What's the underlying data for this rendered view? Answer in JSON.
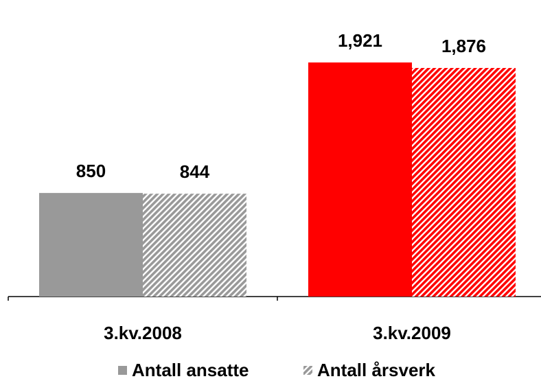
{
  "chart_data": {
    "type": "bar",
    "categories": [
      "3.kv.2008",
      "3.kv.2009"
    ],
    "series": [
      {
        "name": "Antall ansatte",
        "color": "#999999",
        "colors": [
          "#999999",
          "#ff0000"
        ],
        "hatch": false,
        "values": [
          850,
          1921
        ],
        "value_labels": [
          "850",
          "1,921"
        ]
      },
      {
        "name": "Antall årsverk",
        "color": "#999999",
        "colors": [
          "#999999",
          "#ff0000"
        ],
        "hatch": true,
        "values": [
          844,
          1876
        ],
        "value_labels": [
          "844",
          "1,876"
        ]
      }
    ],
    "legend": "bottom"
  }
}
